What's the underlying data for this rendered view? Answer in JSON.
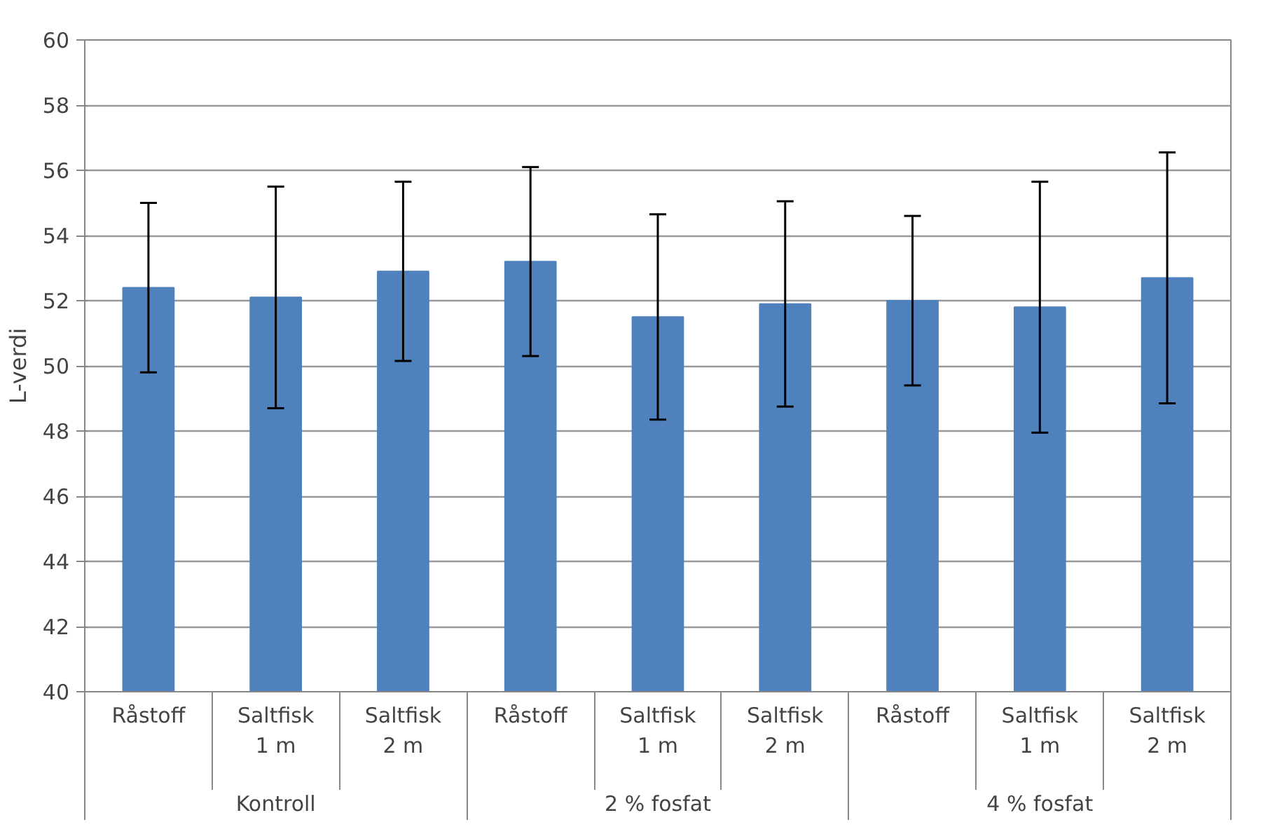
{
  "chart_data": {
    "type": "bar",
    "categories": [
      "Råstoff",
      "Saltfisk\n1 m",
      "Saltfisk\n2 m",
      "Råstoff",
      "Saltfisk\n1 m",
      "Saltfisk\n2 m",
      "Råstoff",
      "Saltfisk\n1 m",
      "Saltfisk\n2 m"
    ],
    "values": [
      52.4,
      52.1,
      52.9,
      53.2,
      51.5,
      51.9,
      52.0,
      51.8,
      52.7
    ],
    "errors": [
      2.6,
      3.4,
      2.75,
      2.9,
      3.15,
      3.15,
      2.6,
      3.85,
      3.85
    ],
    "color": "#4f81bd",
    "ylabel": "L-verdi",
    "ylim": [
      40,
      60
    ],
    "yticks": [
      40,
      42,
      44,
      46,
      48,
      50,
      52,
      54,
      56,
      58,
      60
    ],
    "grid": "y",
    "annotations": [
      "Kontroll",
      "2 % fosfat",
      "4 % fosfat"
    ]
  }
}
